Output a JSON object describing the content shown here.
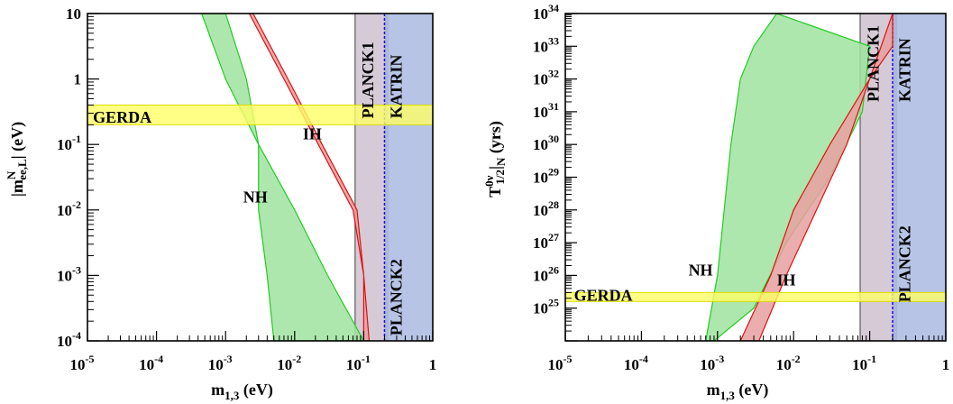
{
  "chart_data": [
    {
      "type": "area",
      "xlabel": "m",
      "xlabel_sub": "1,3",
      "xlabel_unit": " (eV)",
      "ylabel_main": "|m",
      "ylabel_sup": "N",
      "ylabel_sub": "ee,L",
      "ylabel_unit": "| (eV)",
      "xscale": "log",
      "yscale": "log",
      "xlim": [
        1e-05,
        1
      ],
      "ylim": [
        0.0001,
        10
      ],
      "x_ticks": [
        {
          "value": 1e-05,
          "base": "10",
          "exp": "-5"
        },
        {
          "value": 0.0001,
          "base": "10",
          "exp": "-4"
        },
        {
          "value": 0.001,
          "base": "10",
          "exp": "-3"
        },
        {
          "value": 0.01,
          "base": "10",
          "exp": "-2"
        },
        {
          "value": 0.1,
          "base": "10",
          "exp": "-1"
        },
        {
          "value": 1,
          "base": "1",
          "exp": ""
        }
      ],
      "y_ticks": [
        {
          "value": 0.0001,
          "base": "10",
          "exp": "-4"
        },
        {
          "value": 0.001,
          "base": "10",
          "exp": "-3"
        },
        {
          "value": 0.01,
          "base": "10",
          "exp": "-2"
        },
        {
          "value": 0.1,
          "base": "10",
          "exp": "-1"
        },
        {
          "value": 1,
          "base": "1",
          "exp": ""
        },
        {
          "value": 10,
          "base": "10",
          "exp": ""
        }
      ],
      "bands": [
        {
          "name": "NH",
          "label_at": [
            0.0027,
            0.013
          ],
          "fill": "#9fe39f",
          "stroke": "#22cc22",
          "upper": [
            [
              0.00045,
              10
            ],
            [
              0.001,
              1.0
            ],
            [
              0.003,
              0.1
            ],
            [
              0.01,
              0.01
            ],
            [
              0.03,
              0.001
            ],
            [
              0.1,
              0.0001
            ]
          ],
          "lower": [
            [
              0.001,
              10
            ],
            [
              0.002,
              1.0
            ],
            [
              0.003,
              0.1
            ],
            [
              0.003,
              0.01
            ],
            [
              0.004,
              0.001
            ],
            [
              0.005,
              0.0001
            ]
          ]
        },
        {
          "name": "IH",
          "label_at": [
            0.018,
            0.12
          ],
          "fill": "#e8a0a0",
          "stroke": "#e01010",
          "upper": [
            [
              0.0022,
              10
            ],
            [
              0.007,
              1.0
            ],
            [
              0.022,
              0.1
            ],
            [
              0.07,
              0.01
            ],
            [
              0.1,
              0.001
            ],
            [
              0.1,
              0.0001
            ]
          ],
          "lower": [
            [
              0.0025,
              10
            ],
            [
              0.008,
              1.0
            ],
            [
              0.025,
              0.1
            ],
            [
              0.08,
              0.01
            ],
            [
              0.1,
              0.001
            ],
            [
              0.12,
              0.0001
            ]
          ]
        }
      ],
      "hband": {
        "name": "GERDA",
        "y": [
          0.2,
          0.4
        ],
        "label_at": [
          1.2e-05,
          0.26
        ],
        "fill": "#ffff66",
        "stroke": "#dddd00"
      },
      "vbands": [
        {
          "name": "PLANCK1",
          "x": [
            0.075,
            0.23
          ],
          "fill": "#c8b8c8",
          "stroke": "#777777",
          "label_at": [
            0.085,
            0.25
          ],
          "rotate": -90
        },
        {
          "name": "KATRIN",
          "x": [
            0.2,
            1
          ],
          "fill": "#9fb0dc",
          "stroke": "#1010ee",
          "label_at": [
            0.22,
            0.25
          ],
          "rotate": -90
        },
        {
          "name": "PLANCK2",
          "x": null,
          "label_at": [
            0.22,
            0.00012
          ],
          "rotate": -90
        }
      ]
    },
    {
      "type": "area",
      "xlabel": "m",
      "xlabel_sub": "1,3",
      "xlabel_unit": " (eV)",
      "ylabel_main": "T",
      "ylabel_sup": "0ν",
      "ylabel_sub": "1/2",
      "ylabel_tail": "|",
      "ylabel_tail_sub": "N",
      "ylabel_unit": " (yrs)",
      "xscale": "log",
      "yscale": "log",
      "xlim": [
        1e-05,
        1
      ],
      "ylim": [
        1e+24,
        1e+34
      ],
      "x_ticks": [
        {
          "value": 1e-05,
          "base": "10",
          "exp": "-5"
        },
        {
          "value": 0.0001,
          "base": "10",
          "exp": "-4"
        },
        {
          "value": 0.001,
          "base": "10",
          "exp": "-3"
        },
        {
          "value": 0.01,
          "base": "10",
          "exp": "-2"
        },
        {
          "value": 0.1,
          "base": "10",
          "exp": "-1"
        },
        {
          "value": 1,
          "base": "1",
          "exp": ""
        }
      ],
      "y_ticks": [
        {
          "value": 1e+25,
          "base": "10",
          "exp": "25"
        },
        {
          "value": 1e+26,
          "base": "10",
          "exp": "26"
        },
        {
          "value": 1e+27,
          "base": "10",
          "exp": "27"
        },
        {
          "value": 1e+28,
          "base": "10",
          "exp": "28"
        },
        {
          "value": 1e+29,
          "base": "10",
          "exp": "29"
        },
        {
          "value": 1e+30,
          "base": "10",
          "exp": "30"
        },
        {
          "value": 1e+31,
          "base": "10",
          "exp": "31"
        },
        {
          "value": 1e+32,
          "base": "10",
          "exp": "32"
        },
        {
          "value": 1e+33,
          "base": "10",
          "exp": "33"
        },
        {
          "value": 1e+34,
          "base": "10",
          "exp": "34"
        }
      ],
      "bands": [
        {
          "name": "NH",
          "label_at": [
            0.0006,
            1e+26
          ],
          "fill": "#9fe39f",
          "stroke": "#22cc22",
          "upper": [
            [
              0.0007,
              1e+24
            ],
            [
              0.001,
              1e+26
            ],
            [
              0.0015,
              1e+30
            ],
            [
              0.002,
              1e+32
            ],
            [
              0.003,
              1e+33
            ],
            [
              0.006,
              1e+34
            ]
          ],
          "lower": [
            [
              0.0009,
              1e+24
            ],
            [
              0.003,
              1e+25
            ],
            [
              0.008,
              1e+27
            ],
            [
              0.03,
              1e+29
            ],
            [
              0.08,
              1e+31
            ],
            [
              0.1,
              1e+33
            ]
          ]
        },
        {
          "name": "IH",
          "label_at": [
            0.008,
            5e+25
          ],
          "fill": "#e8a0a0",
          "stroke": "#e01010",
          "upper": [
            [
              0.002,
              1e+24
            ],
            [
              0.005,
              1e+26
            ],
            [
              0.01,
              1e+28
            ],
            [
              0.03,
              1e+30
            ],
            [
              0.1,
              1e+32
            ],
            [
              0.2,
              1e+34
            ]
          ],
          "lower": [
            [
              0.0035,
              1e+24
            ],
            [
              0.008,
              1e+26
            ],
            [
              0.02,
              1e+28
            ],
            [
              0.05,
              1e+30
            ],
            [
              0.1,
              1e+32
            ],
            [
              0.2,
              1e+33
            ]
          ]
        }
      ],
      "hband": {
        "name": "GERDA",
        "y": [
          1.6e+25,
          3e+25
        ],
        "label_at": [
          1.3e-05,
          2.5e+25
        ],
        "fill": "#ffff66",
        "stroke": "#dddd00"
      },
      "vbands": [
        {
          "name": "PLANCK1",
          "x": [
            0.075,
            0.23
          ],
          "fill": "#c8b8c8",
          "stroke": "#777777",
          "label_at": [
            0.085,
            2e+31
          ],
          "rotate": -90
        },
        {
          "name": "KATRIN",
          "x": [
            0.2,
            1
          ],
          "fill": "#9fb0dc",
          "stroke": "#1010ee",
          "label_at": [
            0.22,
            2e+31
          ],
          "rotate": -90
        },
        {
          "name": "PLANCK2",
          "x": null,
          "label_at": [
            0.22,
            1.5e+25
          ],
          "rotate": -90
        }
      ]
    }
  ]
}
